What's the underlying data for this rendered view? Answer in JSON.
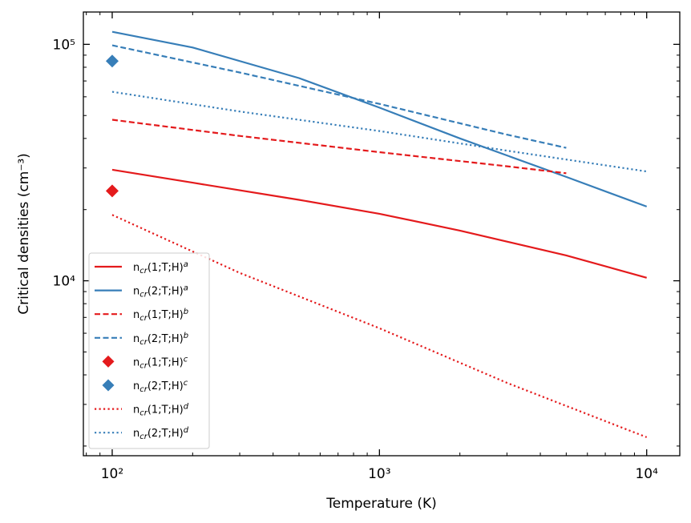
{
  "chart_data": {
    "type": "line",
    "title": "",
    "xlabel": "Temperature (K)",
    "ylabel": "Critical densities (cm⁻³)",
    "xscale": "log",
    "yscale": "log",
    "xlim": [
      78,
      13300
    ],
    "ylim": [
      1820,
      137000
    ],
    "x_ticks": [
      {
        "value": 100,
        "label": "10²"
      },
      {
        "value": 1000,
        "label": "10³"
      },
      {
        "value": 10000,
        "label": "10⁴"
      }
    ],
    "y_ticks": [
      {
        "value": 10000,
        "label": "10⁴"
      },
      {
        "value": 100000,
        "label": "10⁵"
      }
    ],
    "legend_position": "lower-left",
    "series": [
      {
        "name": "n_cr(1;T;H)^a",
        "label_base": "n",
        "label_sub": "cr",
        "label_mid": "(1;T;H)",
        "label_sup": "a",
        "kind": "line",
        "dash": "solid",
        "color": "#e41a1c",
        "x": [
          100,
          200,
          500,
          1000,
          2000,
          5000,
          10000
        ],
        "y": [
          29500,
          26000,
          22000,
          19200,
          16300,
          12800,
          10300
        ]
      },
      {
        "name": "n_cr(2;T;H)^a",
        "label_base": "n",
        "label_sub": "cr",
        "label_mid": "(2;T;H)",
        "label_sup": "a",
        "kind": "line",
        "dash": "solid",
        "color": "#377eb8",
        "x": [
          100,
          200,
          500,
          1000,
          2000,
          5000,
          10000
        ],
        "y": [
          113000,
          97000,
          72000,
          54000,
          40000,
          27500,
          20600
        ]
      },
      {
        "name": "n_cr(1;T;H)^b",
        "label_base": "n",
        "label_sub": "cr",
        "label_mid": "(1;T;H)",
        "label_sup": "b",
        "kind": "line",
        "dash": "dashed",
        "color": "#e41a1c",
        "x": [
          100,
          300,
          1000,
          3000,
          5000
        ],
        "y": [
          48000,
          41000,
          35000,
          30500,
          28500
        ]
      },
      {
        "name": "n_cr(2;T;H)^b",
        "label_base": "n",
        "label_sub": "cr",
        "label_mid": "(2;T;H)",
        "label_sup": "b",
        "kind": "line",
        "dash": "dashed",
        "color": "#377eb8",
        "x": [
          100,
          300,
          1000,
          3000,
          5000
        ],
        "y": [
          99000,
          76000,
          56000,
          41500,
          36500
        ]
      },
      {
        "name": "n_cr(1;T;H)^c",
        "label_base": "n",
        "label_sub": "cr",
        "label_mid": "(1;T;H)",
        "label_sup": "c",
        "kind": "marker",
        "marker": "diamond",
        "color": "#e41a1c",
        "x": [
          100
        ],
        "y": [
          24000
        ]
      },
      {
        "name": "n_cr(2;T;H)^c",
        "label_base": "n",
        "label_sub": "cr",
        "label_mid": "(2;T;H)",
        "label_sup": "c",
        "kind": "marker",
        "marker": "diamond",
        "color": "#377eb8",
        "x": [
          100
        ],
        "y": [
          85000
        ]
      },
      {
        "name": "n_cr(1;T;H)^d",
        "label_base": "n",
        "label_sub": "cr",
        "label_mid": "(1;T;H)",
        "label_sup": "d",
        "kind": "line",
        "dash": "dotted",
        "color": "#e41a1c",
        "x": [
          100,
          300,
          1000,
          3000,
          10000
        ],
        "y": [
          19000,
          10800,
          6300,
          3700,
          2180
        ]
      },
      {
        "name": "n_cr(2;T;H)^d",
        "label_base": "n",
        "label_sub": "cr",
        "label_mid": "(2;T;H)",
        "label_sup": "d",
        "kind": "line",
        "dash": "dotted",
        "color": "#377eb8",
        "x": [
          100,
          300,
          1000,
          3000,
          10000
        ],
        "y": [
          63000,
          52000,
          43000,
          35500,
          29000
        ]
      }
    ]
  }
}
